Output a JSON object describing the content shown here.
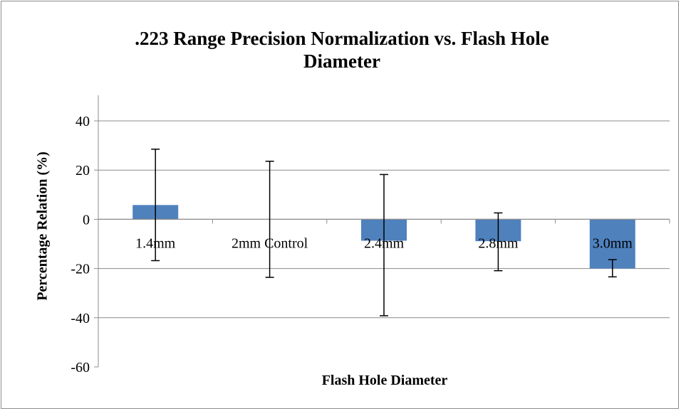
{
  "chart_data": {
    "type": "bar",
    "title": ".223 Range Precision Normalization vs. Flash Hole Diameter",
    "title_lines": [
      ".223 Range Precision Normalization vs. Flash Hole",
      "Diameter"
    ],
    "xlabel": "Flash Hole Diameter",
    "ylabel": "Percentage Relation (%)",
    "ylim": [
      -60,
      40
    ],
    "yticks": [
      "40",
      "20",
      "0",
      "-20",
      "-40",
      "-60"
    ],
    "grid": true,
    "legend": "none",
    "categories": [
      "1.4mm",
      "2mm Control",
      "2.4mm",
      "2.8mm",
      "3.0mm"
    ],
    "values": [
      5.8,
      0,
      -8.7,
      -8.9,
      -20
    ],
    "error_low": [
      -16.8,
      -23.6,
      -39.2,
      -20.9,
      -23.4
    ],
    "error_high": [
      28.5,
      23.6,
      18.2,
      2.6,
      -16.4
    ],
    "colors": {
      "bar": "#4f81bd",
      "grid": "#8c8c8c",
      "error": "#000000"
    }
  }
}
